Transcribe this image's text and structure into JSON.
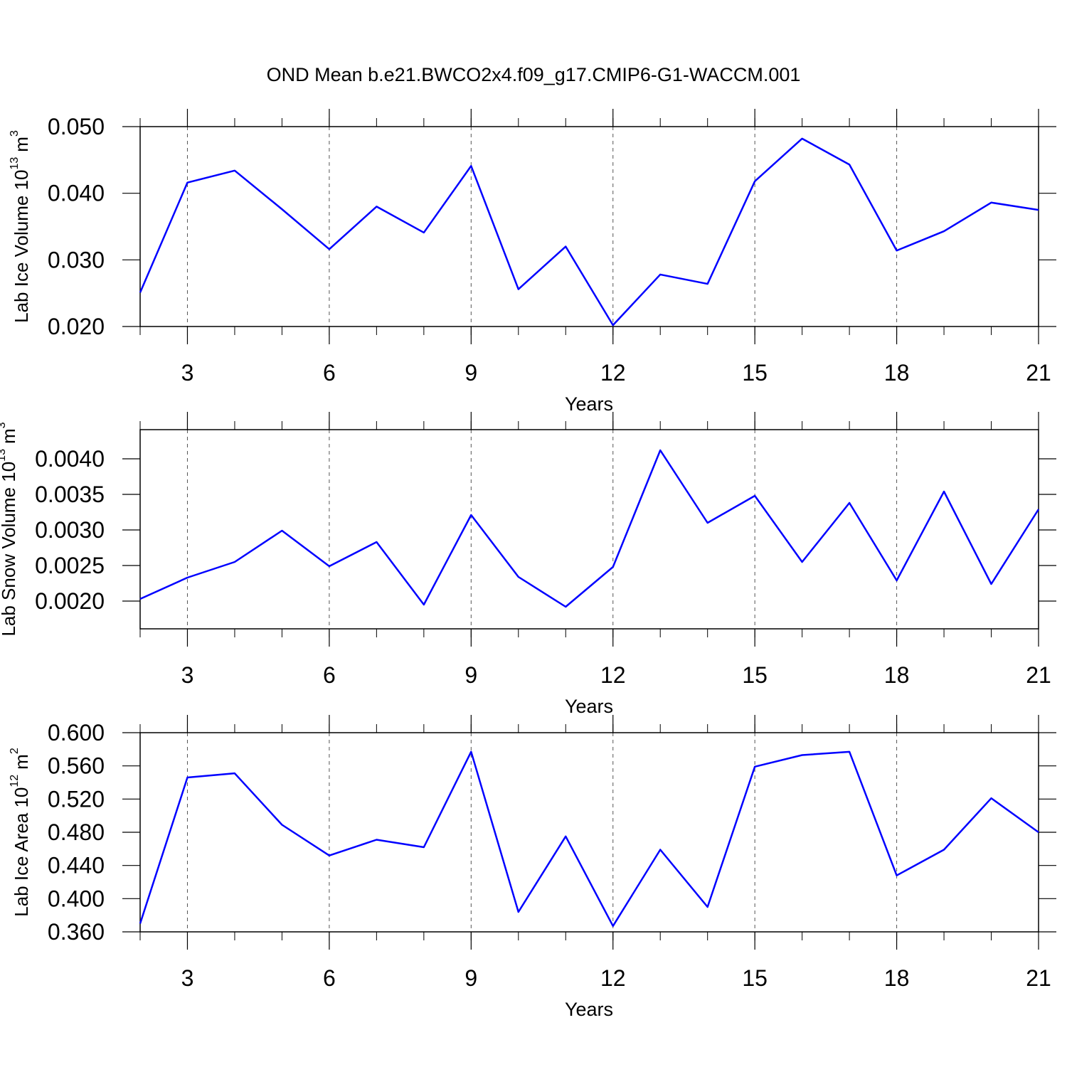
{
  "chart_data": [
    {
      "type": "line",
      "title": "OND Mean b.e21.BWCO2x4.f09_g17.CMIP6-G1-WACCM.001",
      "x_label": "Years",
      "y_label": [
        "Lab Ice Volume 10",
        "13",
        "m",
        "3"
      ],
      "x": [
        2,
        3,
        4,
        5,
        6,
        7,
        8,
        9,
        10,
        11,
        12,
        13,
        14,
        15,
        16,
        17,
        18,
        19,
        20,
        21
      ],
      "xlim": [
        2,
        21
      ],
      "xticks": [
        3,
        6,
        9,
        12,
        15,
        18,
        21
      ],
      "grid": "x",
      "ylim": [
        0.02,
        0.05
      ],
      "yticks": [
        {
          "value": 0.02,
          "label": "0.020"
        },
        {
          "value": 0.03,
          "label": "0.030"
        },
        {
          "value": 0.04,
          "label": "0.040"
        },
        {
          "value": 0.05,
          "label": "0.050"
        }
      ],
      "series": [
        {
          "color": "#0000ff",
          "values": [
            0.0251,
            0.0416,
            0.0434,
            0.0376,
            0.0316,
            0.038,
            0.0341,
            0.0441,
            0.0256,
            0.032,
            0.0202,
            0.0278,
            0.0264,
            0.0418,
            0.0482,
            0.0443,
            0.0314,
            0.0343,
            0.0386,
            0.0375
          ]
        }
      ]
    },
    {
      "type": "line",
      "x_label": "Years",
      "y_label": [
        "Lab Snow Volume 10",
        "13",
        "m",
        "3"
      ],
      "x": [
        2,
        3,
        4,
        5,
        6,
        7,
        8,
        9,
        10,
        11,
        12,
        13,
        14,
        15,
        16,
        17,
        18,
        19,
        20,
        21
      ],
      "xlim": [
        2,
        21
      ],
      "xticks": [
        3,
        6,
        9,
        12,
        15,
        18,
        21
      ],
      "grid": "x",
      "ylim": [
        0.00161,
        0.00441
      ],
      "yticks": [
        {
          "value": 0.002,
          "label": "0.0020"
        },
        {
          "value": 0.0025,
          "label": "0.0025"
        },
        {
          "value": 0.003,
          "label": "0.0030"
        },
        {
          "value": 0.0035,
          "label": "0.0035"
        },
        {
          "value": 0.004,
          "label": "0.0040"
        }
      ],
      "series": [
        {
          "color": "#0000ff",
          "values": [
            0.00203,
            0.00233,
            0.00255,
            0.00299,
            0.00249,
            0.00283,
            0.00195,
            0.00321,
            0.00234,
            0.00192,
            0.00248,
            0.00412,
            0.0031,
            0.00348,
            0.00255,
            0.00338,
            0.00229,
            0.00354,
            0.00224,
            0.00329
          ]
        }
      ]
    },
    {
      "type": "line",
      "x_label": "Years",
      "y_label": [
        "Lab Ice Area 10",
        "12",
        "m",
        "2"
      ],
      "x": [
        2,
        3,
        4,
        5,
        6,
        7,
        8,
        9,
        10,
        11,
        12,
        13,
        14,
        15,
        16,
        17,
        18,
        19,
        20,
        21
      ],
      "xlim": [
        2,
        21
      ],
      "xticks": [
        3,
        6,
        9,
        12,
        15,
        18,
        21
      ],
      "grid": "x",
      "ylim": [
        0.36,
        0.6
      ],
      "yticks": [
        {
          "value": 0.36,
          "label": "0.360"
        },
        {
          "value": 0.4,
          "label": "0.400"
        },
        {
          "value": 0.44,
          "label": "0.440"
        },
        {
          "value": 0.48,
          "label": "0.480"
        },
        {
          "value": 0.52,
          "label": "0.520"
        },
        {
          "value": 0.56,
          "label": "0.560"
        },
        {
          "value": 0.6,
          "label": "0.600"
        }
      ],
      "series": [
        {
          "color": "#0000ff",
          "values": [
            0.37,
            0.546,
            0.551,
            0.489,
            0.452,
            0.471,
            0.462,
            0.577,
            0.384,
            0.475,
            0.367,
            0.459,
            0.39,
            0.559,
            0.573,
            0.577,
            0.428,
            0.459,
            0.521,
            0.48
          ]
        }
      ]
    }
  ]
}
